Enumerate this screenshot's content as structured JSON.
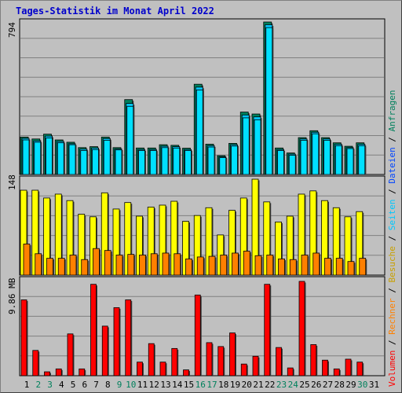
{
  "title": "Tages-Statistik im Monat April 2022",
  "colors": {
    "anfragen": "#00805c",
    "dateien": "#00c8ff",
    "seiten": "#00e0ff",
    "besuche": "#ffff00",
    "rechner": "#ff8000",
    "volumen": "#ff0000"
  },
  "legend": {
    "volumen": "Volumen",
    "rechner": "Rechner",
    "besuche": "Besuche",
    "seiten": "Seiten",
    "dateien": "Dateien",
    "anfragen": "Anfragen",
    "separator": " / "
  },
  "chart_data": [
    {
      "type": "bar",
      "panel": "top",
      "ymax_label": "794",
      "ylim": [
        0,
        794
      ],
      "categories": [
        "1",
        "2",
        "3",
        "4",
        "5",
        "6",
        "7",
        "8",
        "9",
        "10",
        "11",
        "12",
        "13",
        "14",
        "15",
        "16",
        "17",
        "18",
        "19",
        "20",
        "21",
        "22",
        "23",
        "24",
        "25",
        "26",
        "27",
        "28",
        "29",
        "30",
        "31"
      ],
      "series": [
        {
          "name": "Anfragen",
          "values": [
            195,
            185,
            210,
            180,
            168,
            140,
            145,
            195,
            140,
            390,
            138,
            138,
            155,
            152,
            137,
            470,
            158,
            98,
            162,
            325,
            315,
            794,
            138,
            112,
            192,
            228,
            192,
            165,
            147,
            165,
            null
          ]
        },
        {
          "name": "Dateien",
          "values": [
            188,
            175,
            200,
            172,
            160,
            132,
            138,
            187,
            133,
            370,
            130,
            130,
            147,
            145,
            130,
            455,
            150,
            92,
            155,
            310,
            300,
            780,
            130,
            106,
            185,
            220,
            185,
            157,
            140,
            157,
            null
          ]
        },
        {
          "name": "Seiten",
          "values": [
            180,
            168,
            190,
            165,
            155,
            125,
            130,
            178,
            128,
            355,
            125,
            125,
            140,
            138,
            125,
            440,
            143,
            88,
            148,
            295,
            285,
            765,
            125,
            100,
            178,
            212,
            178,
            150,
            135,
            150,
            null
          ]
        }
      ]
    },
    {
      "type": "bar",
      "panel": "middle",
      "ymax_label": "148",
      "ylim": [
        0,
        148
      ],
      "categories": [
        "1",
        "2",
        "3",
        "4",
        "5",
        "6",
        "7",
        "8",
        "9",
        "10",
        "11",
        "12",
        "13",
        "14",
        "15",
        "16",
        "17",
        "18",
        "19",
        "20",
        "21",
        "22",
        "23",
        "24",
        "25",
        "26",
        "27",
        "28",
        "29",
        "30",
        "31"
      ],
      "series": [
        {
          "name": "Besuche",
          "values": [
            131,
            131,
            119,
            125,
            115,
            94,
            90,
            127,
            102,
            112,
            91,
            105,
            108,
            114,
            83,
            92,
            104,
            62,
            100,
            119,
            148,
            113,
            82,
            91,
            125,
            130,
            115,
            104,
            90,
            98,
            null
          ]
        },
        {
          "name": "Rechner",
          "values": [
            48,
            33,
            26,
            26,
            31,
            24,
            41,
            38,
            31,
            32,
            31,
            33,
            34,
            33,
            25,
            28,
            29,
            31,
            34,
            37,
            30,
            31,
            25,
            24,
            31,
            34,
            26,
            26,
            21,
            26,
            null
          ]
        }
      ]
    },
    {
      "type": "bar",
      "panel": "bottom",
      "ymax_label": "9.86 MB",
      "ylim": [
        0,
        9.86
      ],
      "categories": [
        "1",
        "2",
        "3",
        "4",
        "5",
        "6",
        "7",
        "8",
        "9",
        "10",
        "11",
        "12",
        "13",
        "14",
        "15",
        "16",
        "17",
        "18",
        "19",
        "20",
        "21",
        "22",
        "23",
        "24",
        "25",
        "26",
        "27",
        "28",
        "29",
        "30",
        "31"
      ],
      "series": [
        {
          "name": "Volumen",
          "values": [
            7.8,
            2.6,
            0.4,
            0.7,
            4.3,
            0.7,
            9.4,
            5.1,
            7.0,
            7.8,
            1.4,
            3.3,
            1.4,
            2.8,
            0.6,
            8.3,
            3.4,
            3.0,
            4.4,
            1.2,
            2.0,
            9.4,
            2.9,
            0.8,
            9.7,
            3.2,
            1.6,
            0.7,
            1.7,
            1.4,
            null
          ]
        }
      ]
    }
  ],
  "x_day_labels": [
    "1",
    "2",
    "3",
    "4",
    "5",
    "6",
    "7",
    "8",
    "9",
    "10",
    "11",
    "12",
    "13",
    "14",
    "15",
    "16",
    "17",
    "18",
    "19",
    "20",
    "21",
    "22",
    "23",
    "24",
    "25",
    "26",
    "27",
    "28",
    "29",
    "30",
    "31"
  ],
  "weekend_days": [
    "2",
    "3",
    "9",
    "10",
    "16",
    "17",
    "23",
    "24",
    "30"
  ]
}
